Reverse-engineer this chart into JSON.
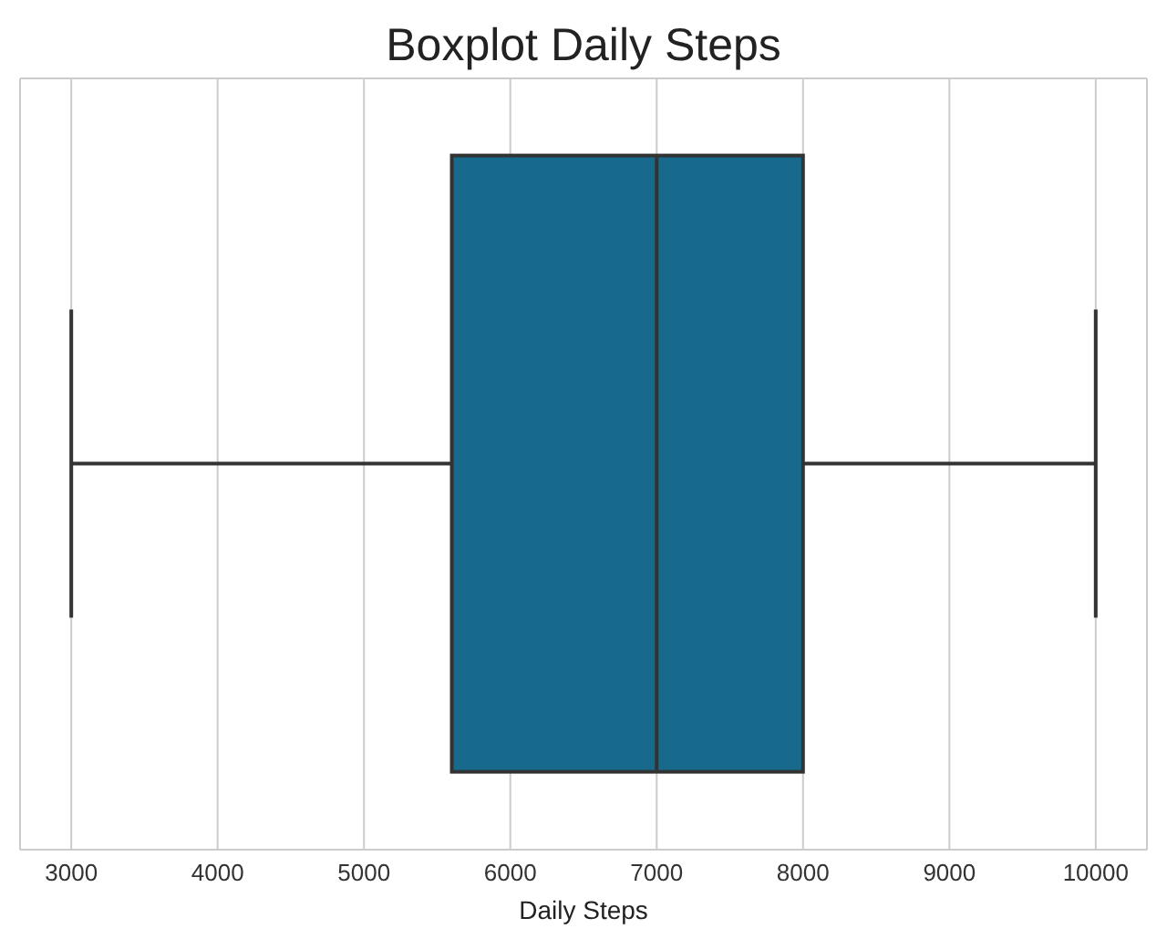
{
  "chart_data": {
    "type": "box",
    "title": "Boxplot Daily Steps",
    "xlabel": "Daily Steps",
    "orientation": "horizontal",
    "categories": [
      null
    ],
    "boxes": [
      {
        "low": 3000,
        "q1": 5600,
        "median": 7000,
        "q3": 8000,
        "high": 10000
      }
    ],
    "color": "#176a8c",
    "xlim": [
      2650,
      10350
    ],
    "xticks": [
      3000,
      4000,
      5000,
      6000,
      7000,
      8000,
      9000,
      10000
    ],
    "grid": "x",
    "tick_labels": "x"
  }
}
